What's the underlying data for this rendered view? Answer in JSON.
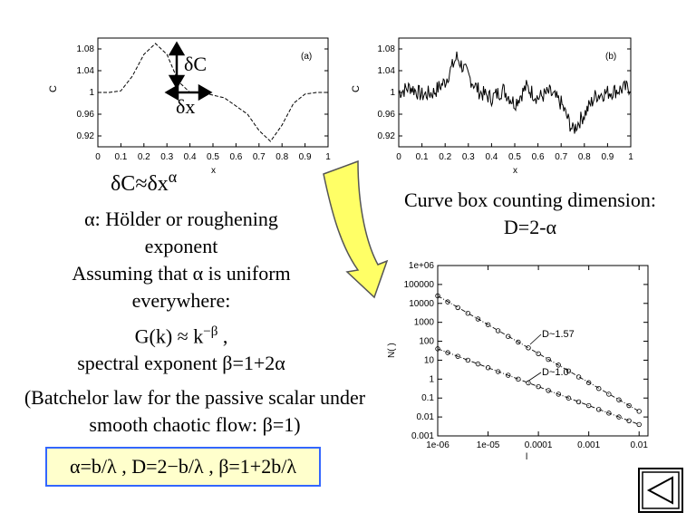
{
  "panel_a": {
    "panel_label": "(a)",
    "ylabel": "C",
    "xlabel": "x",
    "yticks": [
      "1.08",
      "1.04",
      "1",
      "0.96",
      "0.92"
    ],
    "xticks": [
      "0",
      "0.1",
      "0.2",
      "0.3",
      "0.4",
      "0.5",
      "0.6",
      "0.7",
      "0.8",
      "0.9",
      "1"
    ],
    "delta_c": "δC",
    "delta_x": "δx"
  },
  "panel_b": {
    "panel_label": "(b)",
    "ylabel": "C",
    "xlabel": "x",
    "yticks": [
      "1.08",
      "1.04",
      "1",
      "0.96",
      "0.92"
    ],
    "xticks": [
      "0",
      "0.1",
      "0.2",
      "0.3",
      "0.4",
      "0.5",
      "0.6",
      "0.7",
      "0.8",
      "0.9",
      "1"
    ]
  },
  "scaling_relation": {
    "lhs": "δC≈δx",
    "exponent": "α"
  },
  "box_counting": {
    "line1": "Curve box counting dimension:",
    "line2": "D=2-α"
  },
  "holder": {
    "line1": "α: Hölder or roughening",
    "line2": "exponent",
    "line3": "Assuming that α is uniform",
    "line4": "everywhere:",
    "line5_base": "G(k) ≈ k",
    "line5_exp": "−β",
    "line5_tail": " ,",
    "line6": "spectral exponent  β=1+2α",
    "line7": "(Batchelor law for the passive scalar under",
    "line8": "smooth chaotic flow: β=1)"
  },
  "formula_box": "α=b/λ , D=2−b/λ  , β=1+2b/λ",
  "panel_c": {
    "ylabel": "N( )",
    "xlabel": "l",
    "yticks": [
      "1e+06",
      "100000",
      "10000",
      "1000",
      "100",
      "10",
      "1",
      "0.1",
      "0.01",
      "0.001"
    ],
    "xticks": [
      "1e-06",
      "1e-05",
      "0.0001",
      "0.001",
      "0.01"
    ],
    "label_upper": "D~1.57",
    "label_lower": "D~1.0"
  },
  "chart_data": [
    {
      "type": "line",
      "panel": "(a)",
      "xlabel": "x",
      "ylabel": "C",
      "xlim": [
        0,
        1
      ],
      "ylim": [
        0.9,
        1.1
      ],
      "x": [
        0,
        0.05,
        0.1,
        0.15,
        0.2,
        0.25,
        0.3,
        0.35,
        0.4,
        0.45,
        0.5,
        0.55,
        0.6,
        0.65,
        0.7,
        0.75,
        0.8,
        0.85,
        0.9,
        0.95,
        1
      ],
      "y": [
        1.0,
        1.0,
        1.003,
        1.03,
        1.07,
        1.09,
        1.07,
        1.02,
        1.0,
        1.0,
        0.995,
        0.99,
        0.975,
        0.96,
        0.93,
        0.91,
        0.94,
        0.98,
        0.997,
        1.0,
        1.0
      ]
    },
    {
      "type": "line",
      "panel": "(b)",
      "xlabel": "x",
      "ylabel": "C",
      "xlim": [
        0,
        1
      ],
      "ylim": [
        0.9,
        1.1
      ],
      "x": [
        0,
        0.05,
        0.1,
        0.15,
        0.2,
        0.25,
        0.3,
        0.35,
        0.4,
        0.45,
        0.5,
        0.55,
        0.6,
        0.65,
        0.7,
        0.75,
        0.8,
        0.85,
        0.9,
        0.95,
        1
      ],
      "y": [
        1.0,
        1.01,
        0.995,
        1.0,
        1.02,
        1.065,
        1.03,
        1.0,
        0.99,
        1.005,
        0.98,
        1.01,
        0.99,
        1.0,
        0.98,
        0.93,
        0.96,
        0.995,
        1.0,
        1.005,
        1.01
      ]
    },
    {
      "type": "scatter",
      "xlabel": "l",
      "ylabel": "N( )",
      "xscale": "log",
      "yscale": "log",
      "xlim": [
        1e-06,
        0.015
      ],
      "ylim": [
        0.001,
        1000000
      ],
      "series": [
        {
          "name": "D~1.57",
          "x": [
            1e-06,
            1.58e-06,
            2.51e-06,
            3.98e-06,
            6.31e-06,
            1e-05,
            1.58e-05,
            2.51e-05,
            3.98e-05,
            6.31e-05,
            0.0001,
            0.000158,
            0.000251,
            0.000398,
            0.000631,
            0.001,
            0.00158,
            0.00251,
            0.00398,
            0.00631,
            0.01
          ],
          "y": [
            25000,
            12000,
            6000,
            3000,
            1500,
            750,
            360,
            180,
            90,
            45,
            22,
            11,
            5.5,
            2.7,
            1.3,
            0.65,
            0.32,
            0.16,
            0.08,
            0.04,
            0.02
          ]
        },
        {
          "name": "D~1.0",
          "x": [
            1e-06,
            1.58e-06,
            2.51e-06,
            3.98e-06,
            6.31e-06,
            1e-05,
            1.58e-05,
            2.51e-05,
            3.98e-05,
            6.31e-05,
            0.0001,
            0.000158,
            0.000251,
            0.000398,
            0.000631,
            0.001,
            0.00158,
            0.00251,
            0.00398,
            0.00631,
            0.01
          ],
          "y": [
            40,
            25,
            16,
            10,
            6.3,
            4,
            2.5,
            1.6,
            1,
            0.63,
            0.4,
            0.25,
            0.16,
            0.1,
            0.063,
            0.04,
            0.025,
            0.016,
            0.01,
            0.0063,
            0.004
          ]
        }
      ]
    }
  ]
}
